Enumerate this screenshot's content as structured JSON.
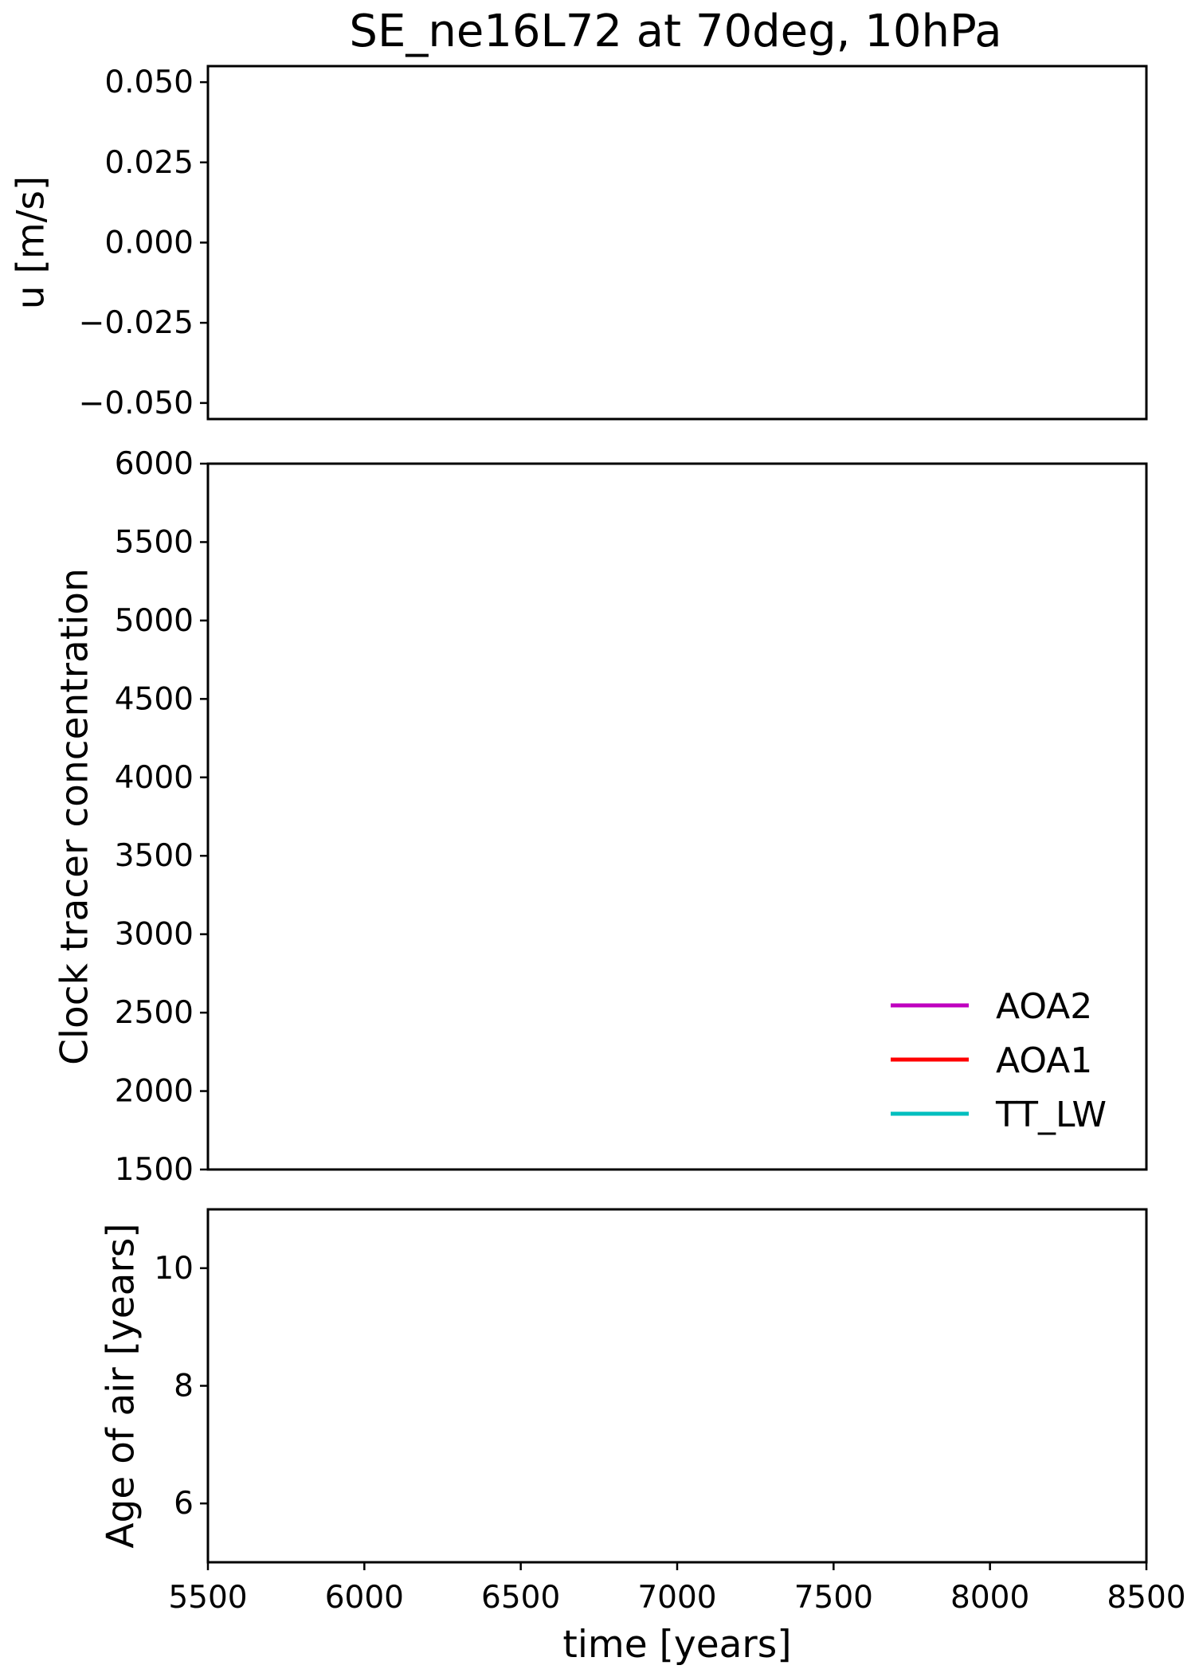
{
  "title": "SE_ne16L72 at 70deg, 10hPa",
  "chart_data": [
    {
      "type": "line",
      "panel": "top",
      "ylabel": "u  [m/s]",
      "xlabel": "",
      "xlim": [
        5500,
        8500
      ],
      "ylim": [
        -0.055,
        0.055
      ],
      "yticks": [
        0.05,
        0.025,
        0.0,
        -0.025,
        -0.05
      ],
      "ytick_labels": [
        "0.050",
        "0.025",
        "0.000",
        "−0.025",
        "−0.050"
      ],
      "grid": false,
      "series": []
    },
    {
      "type": "line",
      "panel": "middle",
      "ylabel": "Clock tracer concentration",
      "xlabel": "",
      "xlim": [
        5500,
        8500
      ],
      "ylim": [
        1500,
        6000
      ],
      "yticks": [
        6000,
        5500,
        5000,
        4500,
        4000,
        3500,
        3000,
        2500,
        2000,
        1500
      ],
      "ytick_labels": [
        "6000",
        "5500",
        "5000",
        "4500",
        "4000",
        "3500",
        "3000",
        "2500",
        "2000",
        "1500"
      ],
      "grid": false,
      "legend_placement": "lower-right",
      "series": [
        {
          "name": "AOA2",
          "color": "#bf00bf",
          "x": [],
          "y": []
        },
        {
          "name": "AOA1",
          "color": "#ff0000",
          "x": [],
          "y": []
        },
        {
          "name": "TT_LW",
          "color": "#00bfbf",
          "x": [],
          "y": []
        }
      ]
    },
    {
      "type": "line",
      "panel": "bottom",
      "ylabel": "Age of air  [years]",
      "xlabel": "time [years]",
      "xlim": [
        5500,
        8500
      ],
      "ylim": [
        5,
        11
      ],
      "xticks": [
        5500,
        6000,
        6500,
        7000,
        7500,
        8000,
        8500
      ],
      "xtick_labels": [
        "5500",
        "6000",
        "6500",
        "7000",
        "7500",
        "8000",
        "8500"
      ],
      "yticks": [
        10,
        8,
        6
      ],
      "ytick_labels": [
        "10",
        "8",
        "6"
      ],
      "grid": false,
      "series": []
    }
  ]
}
